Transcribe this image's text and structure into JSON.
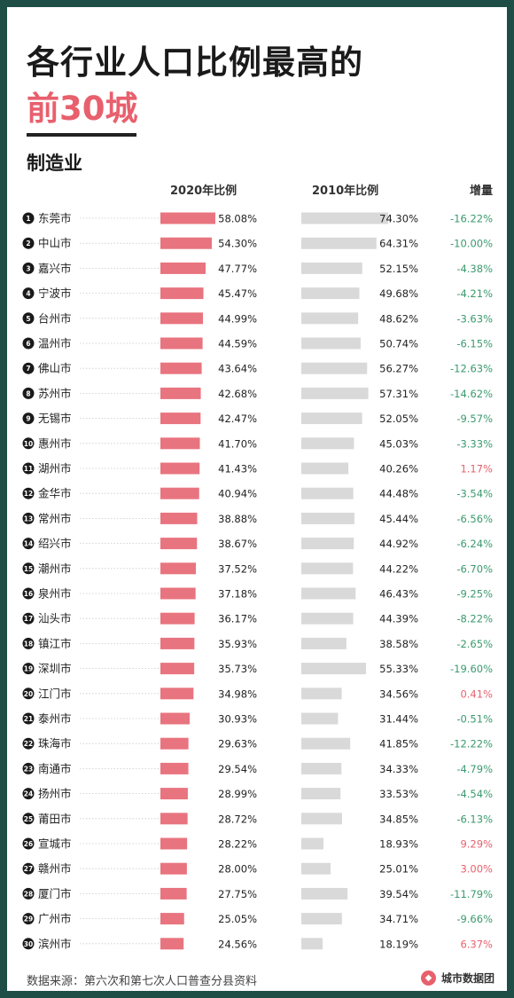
{
  "title_line1": "各行业人口比例最高的",
  "title_line2": "前30城",
  "section": "制造业",
  "source": "数据来源：第六次和第七次人口普查分县资料",
  "brand": "城市数据团",
  "colors": {
    "bar2020": "#e8747f",
    "bar2010": "#d9d9d9",
    "neg": "#3a9a6e",
    "pos": "#e8606d"
  },
  "chart_data": {
    "type": "table",
    "columns": [
      "2020年比例",
      "2010年比例",
      "增量"
    ],
    "rows": [
      {
        "rank": 1,
        "city": "东莞市",
        "v2020": 58.08,
        "l2020": "58.08%",
        "v2010": 74.3,
        "l2010": "74.30%",
        "delta": "-16.22%"
      },
      {
        "rank": 2,
        "city": "中山市",
        "v2020": 54.3,
        "l2020": "54.30%",
        "v2010": 64.31,
        "l2010": "64.31%",
        "delta": "-10.00%"
      },
      {
        "rank": 3,
        "city": "嘉兴市",
        "v2020": 47.77,
        "l2020": "47.77%",
        "v2010": 52.15,
        "l2010": "52.15%",
        "delta": "-4.38%"
      },
      {
        "rank": 4,
        "city": "宁波市",
        "v2020": 45.47,
        "l2020": "45.47%",
        "v2010": 49.68,
        "l2010": "49.68%",
        "delta": "-4.21%"
      },
      {
        "rank": 5,
        "city": "台州市",
        "v2020": 44.99,
        "l2020": "44.99%",
        "v2010": 48.62,
        "l2010": "48.62%",
        "delta": "-3.63%"
      },
      {
        "rank": 6,
        "city": "温州市",
        "v2020": 44.59,
        "l2020": "44.59%",
        "v2010": 50.74,
        "l2010": "50.74%",
        "delta": "-6.15%"
      },
      {
        "rank": 7,
        "city": "佛山市",
        "v2020": 43.64,
        "l2020": "43.64%",
        "v2010": 56.27,
        "l2010": "56.27%",
        "delta": "-12.63%"
      },
      {
        "rank": 8,
        "city": "苏州市",
        "v2020": 42.68,
        "l2020": "42.68%",
        "v2010": 57.31,
        "l2010": "57.31%",
        "delta": "-14.62%"
      },
      {
        "rank": 9,
        "city": "无锡市",
        "v2020": 42.47,
        "l2020": "42.47%",
        "v2010": 52.05,
        "l2010": "52.05%",
        "delta": "-9.57%"
      },
      {
        "rank": 10,
        "city": "惠州市",
        "v2020": 41.7,
        "l2020": "41.70%",
        "v2010": 45.03,
        "l2010": "45.03%",
        "delta": "-3.33%"
      },
      {
        "rank": 11,
        "city": "湖州市",
        "v2020": 41.43,
        "l2020": "41.43%",
        "v2010": 40.26,
        "l2010": "40.26%",
        "delta": "1.17%"
      },
      {
        "rank": 12,
        "city": "金华市",
        "v2020": 40.94,
        "l2020": "40.94%",
        "v2010": 44.48,
        "l2010": "44.48%",
        "delta": "-3.54%"
      },
      {
        "rank": 13,
        "city": "常州市",
        "v2020": 38.88,
        "l2020": "38.88%",
        "v2010": 45.44,
        "l2010": "45.44%",
        "delta": "-6.56%"
      },
      {
        "rank": 14,
        "city": "绍兴市",
        "v2020": 38.67,
        "l2020": "38.67%",
        "v2010": 44.92,
        "l2010": "44.92%",
        "delta": "-6.24%"
      },
      {
        "rank": 15,
        "city": "潮州市",
        "v2020": 37.52,
        "l2020": "37.52%",
        "v2010": 44.22,
        "l2010": "44.22%",
        "delta": "-6.70%"
      },
      {
        "rank": 16,
        "city": "泉州市",
        "v2020": 37.18,
        "l2020": "37.18%",
        "v2010": 46.43,
        "l2010": "46.43%",
        "delta": "-9.25%"
      },
      {
        "rank": 17,
        "city": "汕头市",
        "v2020": 36.17,
        "l2020": "36.17%",
        "v2010": 44.39,
        "l2010": "44.39%",
        "delta": "-8.22%"
      },
      {
        "rank": 18,
        "city": "镇江市",
        "v2020": 35.93,
        "l2020": "35.93%",
        "v2010": 38.58,
        "l2010": "38.58%",
        "delta": "-2.65%"
      },
      {
        "rank": 19,
        "city": "深圳市",
        "v2020": 35.73,
        "l2020": "35.73%",
        "v2010": 55.33,
        "l2010": "55.33%",
        "delta": "-19.60%"
      },
      {
        "rank": 20,
        "city": "江门市",
        "v2020": 34.98,
        "l2020": "34.98%",
        "v2010": 34.56,
        "l2010": "34.56%",
        "delta": "0.41%"
      },
      {
        "rank": 21,
        "city": "泰州市",
        "v2020": 30.93,
        "l2020": "30.93%",
        "v2010": 31.44,
        "l2010": "31.44%",
        "delta": "-0.51%"
      },
      {
        "rank": 22,
        "city": "珠海市",
        "v2020": 29.63,
        "l2020": "29.63%",
        "v2010": 41.85,
        "l2010": "41.85%",
        "delta": "-12.22%"
      },
      {
        "rank": 23,
        "city": "南通市",
        "v2020": 29.54,
        "l2020": "29.54%",
        "v2010": 34.33,
        "l2010": "34.33%",
        "delta": "-4.79%"
      },
      {
        "rank": 24,
        "city": "扬州市",
        "v2020": 28.99,
        "l2020": "28.99%",
        "v2010": 33.53,
        "l2010": "33.53%",
        "delta": "-4.54%"
      },
      {
        "rank": 25,
        "city": "莆田市",
        "v2020": 28.72,
        "l2020": "28.72%",
        "v2010": 34.85,
        "l2010": "34.85%",
        "delta": "-6.13%"
      },
      {
        "rank": 26,
        "city": "宣城市",
        "v2020": 28.22,
        "l2020": "28.22%",
        "v2010": 18.93,
        "l2010": "18.93%",
        "delta": "9.29%"
      },
      {
        "rank": 27,
        "city": "赣州市",
        "v2020": 28.0,
        "l2020": "28.00%",
        "v2010": 25.01,
        "l2010": "25.01%",
        "delta": "3.00%"
      },
      {
        "rank": 28,
        "city": "厦门市",
        "v2020": 27.75,
        "l2020": "27.75%",
        "v2010": 39.54,
        "l2010": "39.54%",
        "delta": "-11.79%"
      },
      {
        "rank": 29,
        "city": "广州市",
        "v2020": 25.05,
        "l2020": "25.05%",
        "v2010": 34.71,
        "l2010": "34.71%",
        "delta": "-9.66%"
      },
      {
        "rank": 30,
        "city": "滨州市",
        "v2020": 24.56,
        "l2020": "24.56%",
        "v2010": 18.19,
        "l2010": "18.19%",
        "delta": "6.37%"
      }
    ]
  }
}
